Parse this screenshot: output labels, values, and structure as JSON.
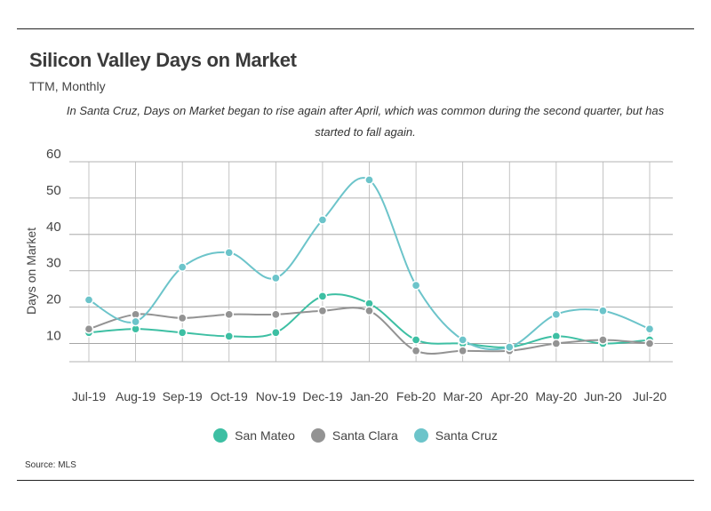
{
  "header": {
    "title": "Silicon Valley Days on Market",
    "subtitle": "TTM, Monthly",
    "annotation": "In Santa Cruz, Days on Market began to rise again after April, which was common during the second quarter, but has started to fall again."
  },
  "footer": {
    "source": "Source:  MLS"
  },
  "chart_data": {
    "type": "line",
    "title": "Silicon Valley Days on Market",
    "ylabel": "Days on Market",
    "xlabel": "",
    "ylim": [
      5,
      60
    ],
    "yticks": [
      10,
      20,
      30,
      40,
      50,
      60
    ],
    "grid": true,
    "legend_position": "bottom",
    "categories": [
      "Jul-19",
      "Aug-19",
      "Sep-19",
      "Oct-19",
      "Nov-19",
      "Dec-19",
      "Jan-20",
      "Feb-20",
      "Mar-20",
      "Apr-20",
      "May-20",
      "Jun-20",
      "Jul-20"
    ],
    "series": [
      {
        "name": "San Mateo",
        "color": "#3dbfa3",
        "values": [
          13,
          14,
          13,
          12,
          13,
          23,
          21,
          11,
          10,
          9,
          12,
          10,
          11
        ]
      },
      {
        "name": "Santa Clara",
        "color": "#939393",
        "values": [
          14,
          18,
          17,
          18,
          18,
          19,
          19,
          8,
          8,
          8,
          10,
          11,
          10
        ]
      },
      {
        "name": "Santa Cruz",
        "color": "#6cc4ca",
        "values": [
          22,
          16,
          31,
          35,
          28,
          44,
          55,
          26,
          11,
          9,
          18,
          19,
          14
        ]
      }
    ]
  }
}
